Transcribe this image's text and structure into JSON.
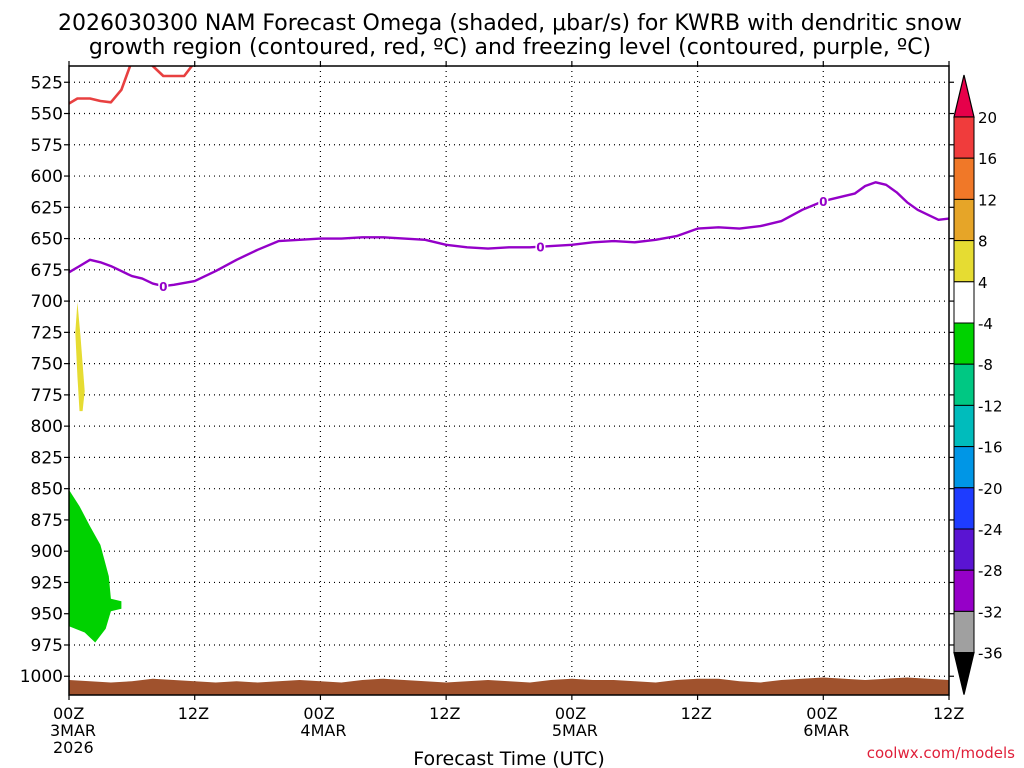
{
  "chart_data": {
    "type": "heatmap",
    "title_line1": "2026030300 NAM Forecast Omega (shaded, μbar/s) for KWRB with dendritic snow",
    "title_line2": "growth region (contoured, red, ºC) and freezing level (contoured, purple, ºC)",
    "xlabel": "Forecast Time (UTC)",
    "credit": "coolwx.com/models",
    "y_axis": {
      "ticks": [
        "525",
        "550",
        "575",
        "600",
        "625",
        "650",
        "675",
        "700",
        "725",
        "750",
        "775",
        "800",
        "825",
        "850",
        "875",
        "900",
        "925",
        "950",
        "975",
        "1000"
      ],
      "range_hpa": [
        512,
        1015
      ],
      "inverted": true,
      "grid": true
    },
    "x_axis": {
      "range_hours": [
        0,
        84
      ],
      "ticks": [
        {
          "h": 0,
          "l1": "00Z",
          "l2": "3MAR",
          "l3": "2026"
        },
        {
          "h": 12,
          "l1": "12Z",
          "l2": "",
          "l3": ""
        },
        {
          "h": 24,
          "l1": "00Z",
          "l2": "4MAR",
          "l3": ""
        },
        {
          "h": 36,
          "l1": "12Z",
          "l2": "",
          "l3": ""
        },
        {
          "h": 48,
          "l1": "00Z",
          "l2": "5MAR",
          "l3": ""
        },
        {
          "h": 60,
          "l1": "12Z",
          "l2": "",
          "l3": ""
        },
        {
          "h": 72,
          "l1": "00Z",
          "l2": "6MAR",
          "l3": ""
        },
        {
          "h": 84,
          "l1": "12Z",
          "l2": "",
          "l3": ""
        }
      ],
      "grid": true
    },
    "colorbar": {
      "labels": [
        "20",
        "16",
        "12",
        "8",
        "4",
        "-4",
        "-8",
        "-12",
        "-16",
        "-20",
        "-24",
        "-28",
        "-32",
        "-36"
      ],
      "colors": [
        "#e6004a",
        "#f03c3c",
        "#f07828",
        "#e6a528",
        "#e6dc32",
        "#ffffff",
        "#00d200",
        "#00c883",
        "#00bcbc",
        "#0096e6",
        "#1e3cff",
        "#5a14d2",
        "#9600c8",
        "#a0a0a0",
        "#000000"
      ]
    },
    "freezing_level": {
      "label": "0",
      "color": "#9400c8",
      "label_hours": [
        9,
        45,
        72
      ],
      "points": [
        [
          0,
          677
        ],
        [
          1,
          672
        ],
        [
          2,
          667
        ],
        [
          3,
          669
        ],
        [
          4,
          672
        ],
        [
          5,
          676
        ],
        [
          6,
          680
        ],
        [
          7,
          682
        ],
        [
          8,
          686
        ],
        [
          9,
          688
        ],
        [
          10,
          687
        ],
        [
          12,
          684
        ],
        [
          14,
          676
        ],
        [
          16,
          667
        ],
        [
          18,
          659
        ],
        [
          20,
          652
        ],
        [
          22,
          651
        ],
        [
          24,
          650
        ],
        [
          26,
          650
        ],
        [
          28,
          649
        ],
        [
          30,
          649
        ],
        [
          32,
          650
        ],
        [
          34,
          651
        ],
        [
          36,
          655
        ],
        [
          38,
          657
        ],
        [
          40,
          658
        ],
        [
          42,
          657
        ],
        [
          44,
          657
        ],
        [
          46,
          656
        ],
        [
          48,
          655
        ],
        [
          50,
          653
        ],
        [
          52,
          652
        ],
        [
          54,
          653
        ],
        [
          56,
          651
        ],
        [
          58,
          648
        ],
        [
          60,
          642
        ],
        [
          62,
          641
        ],
        [
          64,
          642
        ],
        [
          66,
          640
        ],
        [
          68,
          636
        ],
        [
          70,
          627
        ],
        [
          72,
          620
        ],
        [
          74,
          616
        ],
        [
          75,
          614
        ],
        [
          76,
          608
        ],
        [
          77,
          605
        ],
        [
          78,
          607
        ],
        [
          79,
          613
        ],
        [
          80,
          621
        ],
        [
          81,
          627
        ],
        [
          82,
          631
        ],
        [
          83,
          635
        ],
        [
          84,
          634
        ]
      ]
    },
    "dgz_contour": {
      "color": "#e84040",
      "label": "",
      "points": [
        [
          0,
          542
        ],
        [
          0.8,
          538
        ],
        [
          2,
          538
        ],
        [
          3,
          540
        ],
        [
          4,
          541
        ],
        [
          5,
          531
        ],
        [
          6,
          508
        ],
        [
          7,
          503
        ],
        [
          8,
          512
        ],
        [
          9,
          520
        ],
        [
          10,
          520
        ],
        [
          11,
          520
        ],
        [
          12,
          509
        ]
      ]
    },
    "omega_regions": [
      {
        "value": -6,
        "color": "#00d200",
        "outline": [
          [
            0,
            851
          ],
          [
            1,
            864
          ],
          [
            2,
            880
          ],
          [
            3,
            895
          ],
          [
            3.8,
            920
          ],
          [
            4,
            938
          ],
          [
            5,
            940
          ],
          [
            5,
            946
          ],
          [
            4,
            948
          ],
          [
            3.5,
            962
          ],
          [
            2.5,
            973
          ],
          [
            1.5,
            965
          ],
          [
            0,
            960
          ]
        ]
      },
      {
        "value": 5,
        "color": "#e6dc32",
        "outline": [
          [
            0.6,
            725
          ],
          [
            0.8,
            701
          ],
          [
            1.1,
            728
          ],
          [
            1.5,
            772
          ],
          [
            1.3,
            788
          ],
          [
            1,
            788
          ],
          [
            0.8,
            760
          ]
        ]
      }
    ],
    "terrain": {
      "color": "#a0522d",
      "top_points": [
        [
          0,
          1003
        ],
        [
          2,
          1004
        ],
        [
          4,
          1005
        ],
        [
          6,
          1004
        ],
        [
          8,
          1002
        ],
        [
          10,
          1003
        ],
        [
          12,
          1004
        ],
        [
          14,
          1005
        ],
        [
          16,
          1004
        ],
        [
          18,
          1005
        ],
        [
          20,
          1004
        ],
        [
          22,
          1003
        ],
        [
          24,
          1004
        ],
        [
          26,
          1005
        ],
        [
          28,
          1003
        ],
        [
          30,
          1002
        ],
        [
          32,
          1003
        ],
        [
          34,
          1004
        ],
        [
          36,
          1005
        ],
        [
          38,
          1004
        ],
        [
          40,
          1003
        ],
        [
          42,
          1004
        ],
        [
          44,
          1005
        ],
        [
          46,
          1003
        ],
        [
          48,
          1002
        ],
        [
          50,
          1003
        ],
        [
          52,
          1003
        ],
        [
          54,
          1004
        ],
        [
          56,
          1005
        ],
        [
          58,
          1003
        ],
        [
          60,
          1002
        ],
        [
          62,
          1002
        ],
        [
          64,
          1004
        ],
        [
          66,
          1005
        ],
        [
          68,
          1003
        ],
        [
          70,
          1002
        ],
        [
          72,
          1001
        ],
        [
          74,
          1002
        ],
        [
          76,
          1003
        ],
        [
          78,
          1002
        ],
        [
          80,
          1001
        ],
        [
          82,
          1002
        ],
        [
          84,
          1003
        ]
      ]
    }
  }
}
